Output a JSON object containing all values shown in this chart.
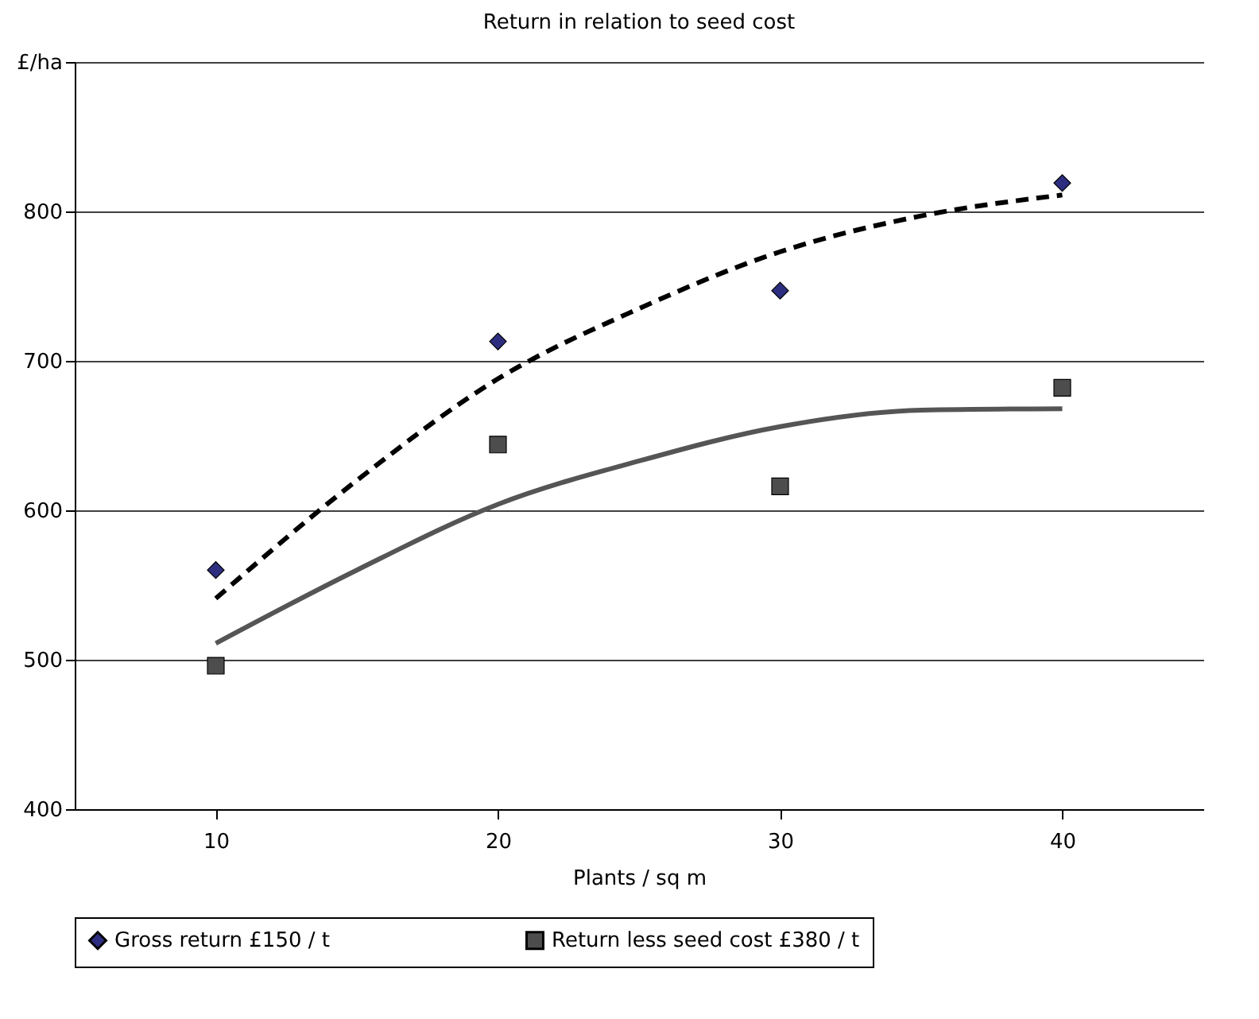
{
  "chart_data": {
    "type": "scatter",
    "title": "Return in relation to seed cost",
    "xlabel": "Plants / sq m",
    "x": [
      10,
      20,
      30,
      40
    ],
    "xlim": [
      5,
      45
    ],
    "xticks": [
      10,
      20,
      30,
      40
    ],
    "ylim": [
      400,
      900
    ],
    "yticks": [
      400,
      500,
      600,
      700,
      800,
      {
        "value": 900,
        "label": "£/ha"
      }
    ],
    "grid": "y",
    "legend": "bottom",
    "series": [
      {
        "name": "Gross return £150 / t",
        "color": "#2e2e80",
        "marker": "diamond",
        "values": [
          560,
          713,
          747,
          819
        ]
      },
      {
        "name": "Return less seed cost £380 / t",
        "color": "#4d4d4d",
        "marker": "square",
        "values": [
          496,
          644,
          616,
          682
        ]
      },
      {
        "type": "line",
        "color": "#000000",
        "line_style": "dashed",
        "x": [
          10,
          15,
          20,
          25,
          30,
          35,
          40
        ],
        "values": [
          541,
          620,
          688,
          735,
          773,
          797,
          811
        ]
      },
      {
        "type": "line",
        "color": "#555555",
        "line_style": "solid",
        "x": [
          10,
          15,
          20,
          25,
          30,
          35,
          40
        ],
        "values": [
          511,
          560,
          604,
          633,
          656,
          667,
          668
        ]
      }
    ]
  }
}
